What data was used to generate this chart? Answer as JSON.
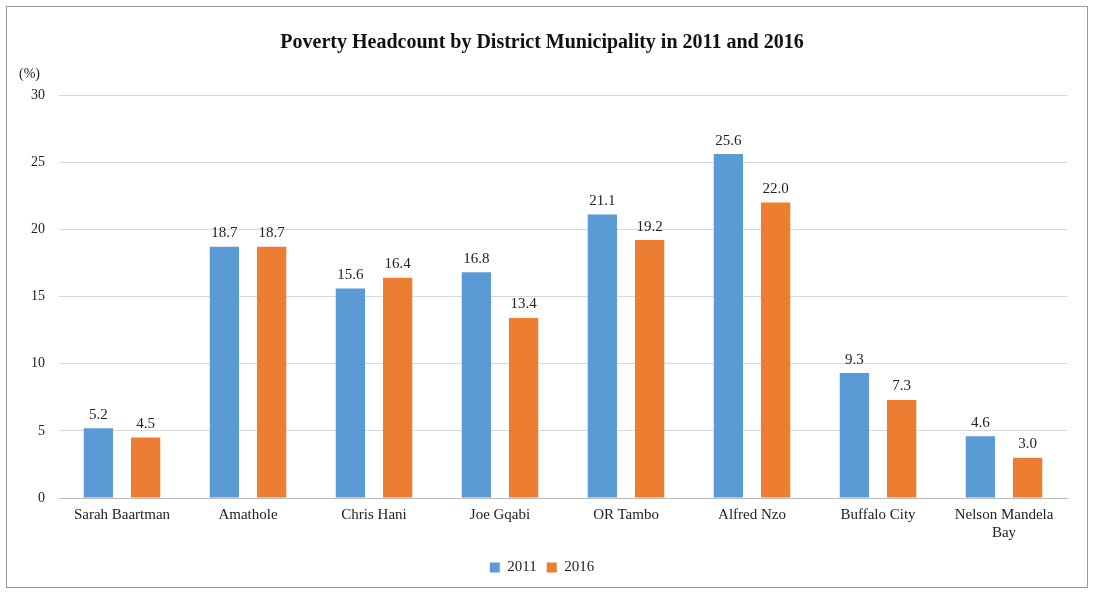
{
  "chart_data": {
    "type": "bar",
    "title": "Poverty Headcount by District Municipality in 2011 and 2016",
    "ylabel": "(%)",
    "categories": [
      "Sarah Baartman",
      "Amathole",
      "Chris Hani",
      "Joe Gqabi",
      "OR Tambo",
      "Alfred Nzo",
      "Buffalo City",
      "Nelson Mandela Bay"
    ],
    "series": [
      {
        "name": "2011",
        "color": "#5b9bd5",
        "values": [
          5.2,
          18.7,
          15.6,
          16.8,
          21.1,
          25.6,
          9.3,
          4.6
        ],
        "value_labels": [
          "5.2",
          "18.7",
          "15.6",
          "16.8",
          "21.1",
          "25.6",
          "9.3",
          "4.6"
        ]
      },
      {
        "name": "2016",
        "color": "#ed7d31",
        "values": [
          4.5,
          18.7,
          16.4,
          13.4,
          19.2,
          22.0,
          7.3,
          3.0
        ],
        "value_labels": [
          "4.5",
          "18.7",
          "16.4",
          "13.4",
          "19.2",
          "22.0",
          "7.3",
          "3.0"
        ]
      }
    ],
    "ylim": [
      0,
      30
    ],
    "yticks": [
      0,
      5,
      10,
      15,
      20,
      25,
      30
    ],
    "grid": "y",
    "legend": "bottom"
  }
}
